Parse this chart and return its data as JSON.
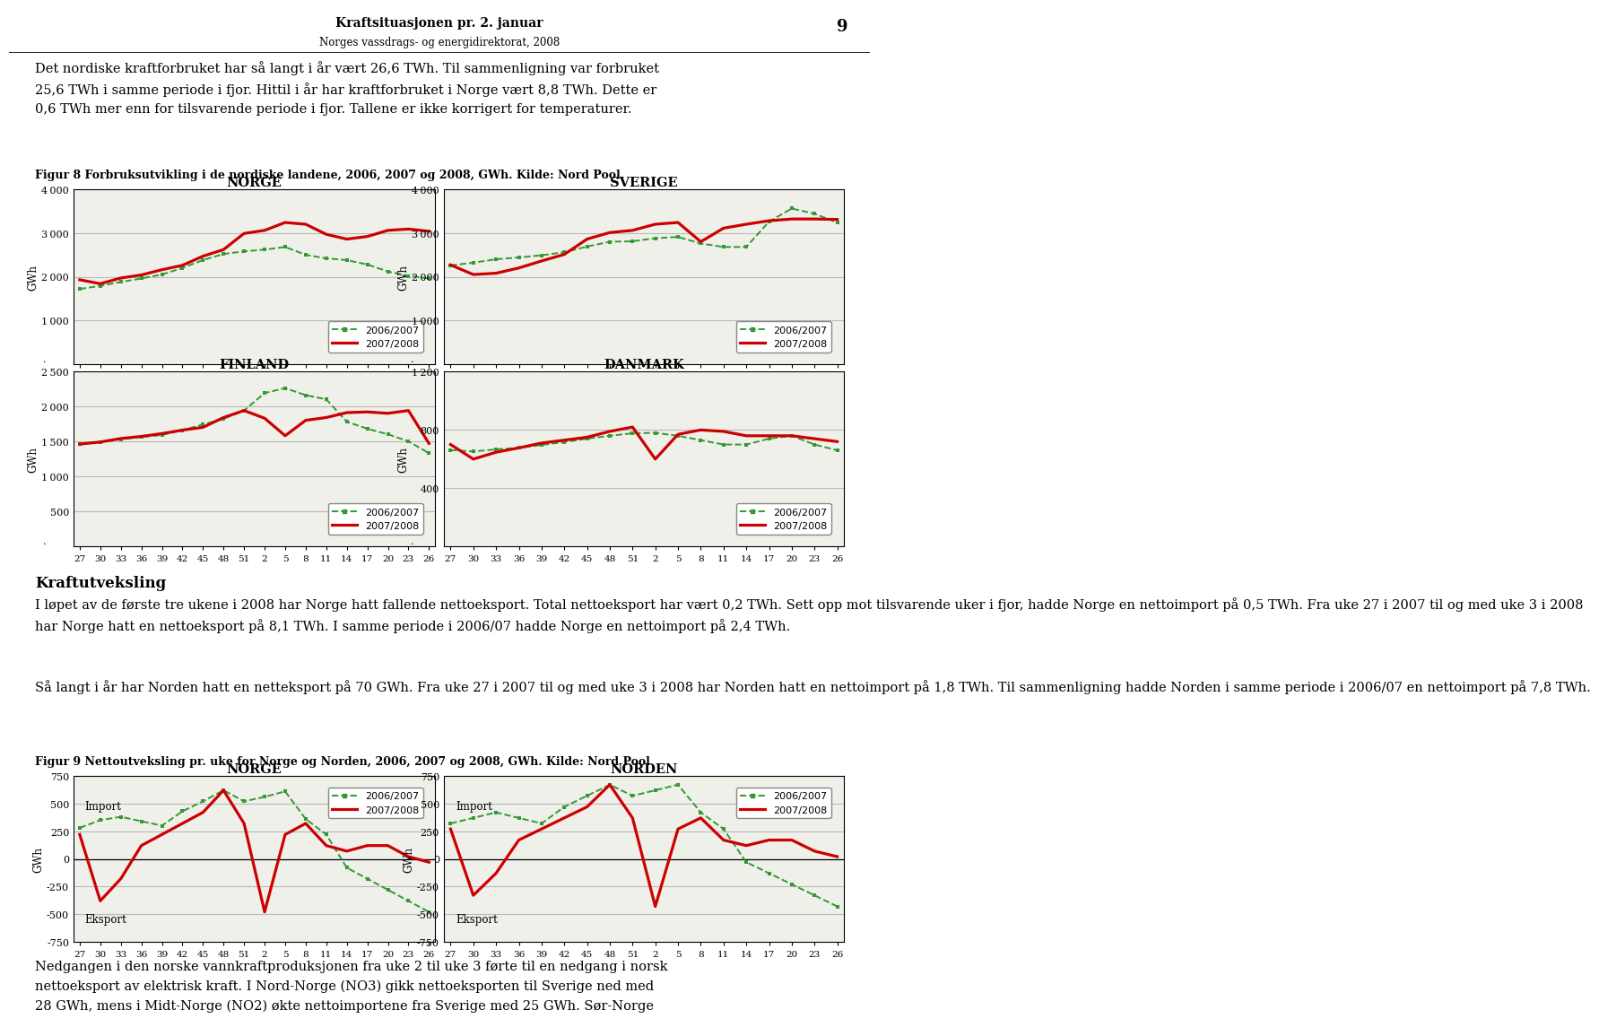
{
  "page_title": "Kraftsituasjonen pr. 2. januar",
  "page_subtitle": "Norges vassdrags- og energidirektorat, 2008",
  "page_number": "9",
  "intro_text": "Det nordiske kraftforbruket har så langt i år vært 26,6 TWh. Til sammenligning var forbruket\n25,6 TWh i samme periode i fjor. Hittil i år har kraftforbruket i Norge vært 8,8 TWh. Dette er\n0,6 TWh mer enn for tilsvarende periode i fjor. Tallene er ikke korrigert for temperaturer.",
  "fig8_caption": "Figur 8 Forbruksutvikling i de nordiske landene, 2006, 2007 og 2008, GWh. Kilde: Nord Pool",
  "x_ticks": [
    "27",
    "30",
    "33",
    "36",
    "39",
    "42",
    "45",
    "48",
    "51",
    "2",
    "5",
    "8",
    "11",
    "14",
    "17",
    "20",
    "23",
    "26"
  ],
  "norge_2006": [
    1720,
    1790,
    1880,
    1960,
    2050,
    2200,
    2380,
    2520,
    2580,
    2620,
    2680,
    2500,
    2420,
    2380,
    2280,
    2120,
    2020,
    1960
  ],
  "norge_2007": [
    1930,
    1840,
    1970,
    2040,
    2160,
    2260,
    2470,
    2620,
    2990,
    3060,
    3240,
    3200,
    2970,
    2860,
    2920,
    3060,
    3090,
    3040
  ],
  "sverige_2006": [
    2260,
    2320,
    2400,
    2440,
    2490,
    2560,
    2690,
    2800,
    2810,
    2880,
    2910,
    2760,
    2680,
    2680,
    3260,
    3560,
    3440,
    3240
  ],
  "sverige_2007": [
    2270,
    2050,
    2080,
    2200,
    2360,
    2510,
    2860,
    3010,
    3060,
    3200,
    3240,
    2800,
    3110,
    3200,
    3280,
    3320,
    3320,
    3310
  ],
  "finland_2006": [
    1460,
    1490,
    1530,
    1560,
    1590,
    1660,
    1740,
    1820,
    1940,
    2190,
    2260,
    2160,
    2100,
    1780,
    1680,
    1600,
    1500,
    1330
  ],
  "finland_2007": [
    1460,
    1490,
    1540,
    1570,
    1610,
    1660,
    1700,
    1840,
    1940,
    1830,
    1580,
    1800,
    1840,
    1910,
    1920,
    1900,
    1940,
    1470
  ],
  "danmark_2006": [
    660,
    650,
    665,
    675,
    695,
    715,
    738,
    758,
    775,
    778,
    758,
    728,
    698,
    698,
    738,
    758,
    698,
    658
  ],
  "danmark_2007": [
    698,
    598,
    645,
    675,
    708,
    728,
    748,
    788,
    818,
    598,
    768,
    798,
    788,
    758,
    758,
    758,
    738,
    718
  ],
  "color_2006": "#339933",
  "color_2007": "#CC0000",
  "section_title": "Kraftutveksling",
  "body_text1": "I løpet av de første tre ukene i 2008 har Norge hatt fallende nettoeksport. Total nettoeksport har vært 0,2 TWh. Sett opp mot tilsvarende uker i fjor, hadde Norge en nettoimport på 0,5 TWh. Fra uke 27 i 2007 til og med uke 3 i 2008 har Norge hatt en nettoeksport på 8,1 TWh. I samme periode i 2006/07 hadde Norge en nettoimport på 2,4 TWh.",
  "body_text2": "Så langt i år har Norden hatt en netteksport på 70 GWh. Fra uke 27 i 2007 til og med uke 3 i 2008 har Norden hatt en nettoimport på 1,8 TWh. Til sammenligning hadde Norden i samme periode i 2006/07 en nettoimport på 7,8 TWh.",
  "fig9_caption": "Figur 9 Nettoutveksling pr. uke for Norge og Norden, 2006, 2007 og 2008, GWh. Kilde: Nord Pool",
  "norge_net_2006": [
    280,
    350,
    380,
    340,
    300,
    430,
    520,
    620,
    520,
    560,
    610,
    360,
    220,
    -80,
    -180,
    -280,
    -380,
    -480
  ],
  "norge_net_2007": [
    220,
    -380,
    -180,
    120,
    220,
    320,
    420,
    620,
    320,
    -480,
    220,
    320,
    120,
    70,
    120,
    120,
    20,
    -30
  ],
  "norden_net_2006": [
    320,
    370,
    420,
    370,
    320,
    470,
    570,
    670,
    570,
    620,
    670,
    420,
    270,
    -30,
    -130,
    -230,
    -330,
    -430
  ],
  "norden_net_2007": [
    270,
    -330,
    -130,
    170,
    270,
    370,
    470,
    670,
    370,
    -430,
    270,
    370,
    170,
    120,
    170,
    170,
    70,
    20
  ],
  "bottom_text": "Nedgangen i den norske vannkraftproduksjonen fra uke 2 til uke 3 førte til en nedgang i norsk\nnettoeksport av elektrisk kraft. I Nord-Norge (NO3) gikk nettoeksporten til Sverige ned med\n28 GWh, mens i Midt-Norge (NO2) økte nettoimportene fra Sverige med 25 GWh. Sør-Norge"
}
